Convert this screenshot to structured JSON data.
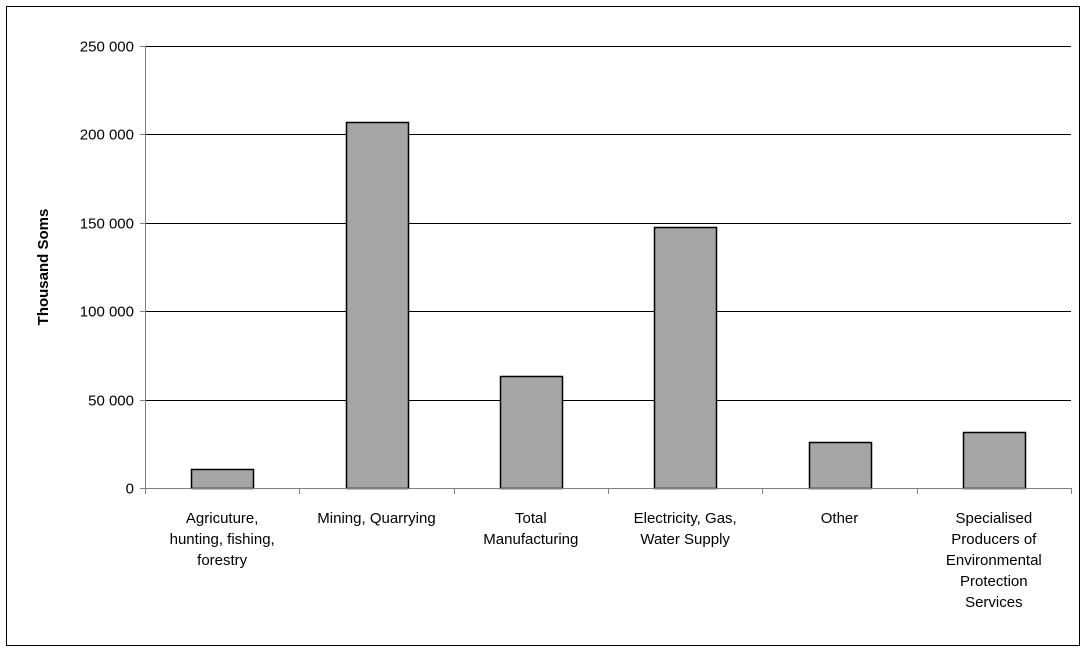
{
  "chart_data": {
    "type": "bar",
    "title": "",
    "xlabel": "",
    "ylabel": "Thousand Soms",
    "ylim": [
      0,
      250000
    ],
    "yticks": [
      0,
      50000,
      100000,
      150000,
      200000,
      250000
    ],
    "ytick_labels": [
      "0",
      "50 000",
      "100 000",
      "150 000",
      "200 000",
      "250 000"
    ],
    "grid": true,
    "legend": "none",
    "categories": [
      "Agricuture, hunting, fishing, forestry",
      "Mining, Quarrying",
      "Total Manufacturing",
      "Electricity, Gas, Water Supply",
      "Other",
      "Specialised Producers of Environmental Protection Services"
    ],
    "category_lines": [
      [
        "Agricuture,",
        "hunting, fishing,",
        "forestry"
      ],
      [
        "Mining, Quarrying"
      ],
      [
        "Total",
        "Manufacturing"
      ],
      [
        "Electricity, Gas,",
        "Water Supply"
      ],
      [
        "Other"
      ],
      [
        "Specialised",
        "Producers of",
        "Environmental",
        "Protection",
        "Services"
      ]
    ],
    "values": [
      11000,
      207000,
      63500,
      147500,
      26000,
      31500
    ],
    "colors": {
      "bar": "#a6a6a6",
      "bar_border": "#000000",
      "grid": "#000000",
      "axis": "#808080"
    }
  }
}
